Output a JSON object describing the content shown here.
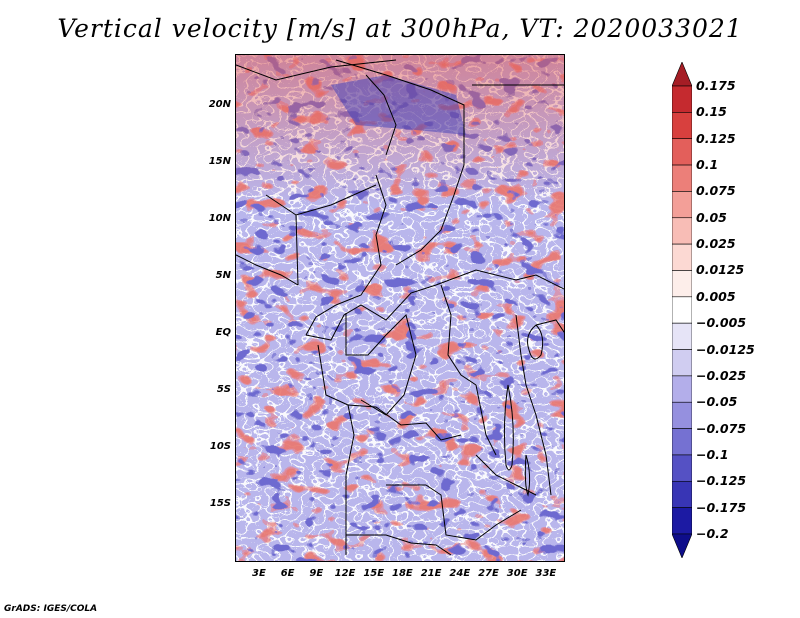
{
  "title": "Vertical velocity [m/s] at 300hPa, VT: 2020033021",
  "map": {
    "lat_ticks": [
      "20N",
      "15N",
      "10N",
      "5N",
      "EQ",
      "5S",
      "10S",
      "15S"
    ],
    "lat_values": [
      20,
      15,
      10,
      5,
      0,
      -5,
      -10,
      -15
    ],
    "lon_ticks": [
      "3E",
      "6E",
      "9E",
      "12E",
      "15E",
      "18E",
      "21E",
      "24E",
      "27E",
      "30E",
      "33E"
    ],
    "lon_values": [
      3,
      6,
      9,
      12,
      15,
      18,
      21,
      24,
      27,
      30,
      33
    ],
    "lat_range": [
      -20,
      24.6
    ],
    "lon_range": [
      0.5,
      35
    ],
    "colors": {
      "border_line": "#000000",
      "base_field": "#b9b6ec"
    }
  },
  "colorbar": {
    "labels": [
      "0.175",
      "0.15",
      "0.125",
      "0.1",
      "0.075",
      "0.05",
      "0.025",
      "0.0125",
      "0.005",
      "−0.005",
      "−0.0125",
      "−0.025",
      "−0.05",
      "−0.075",
      "−0.1",
      "−0.125",
      "−0.175",
      "−0.2"
    ],
    "colors": [
      "#a51d25",
      "#c52a2f",
      "#d8403e",
      "#e35f5b",
      "#ec7f79",
      "#f39f98",
      "#f8bdb6",
      "#fcd9d3",
      "#fdeeea",
      "#ffffff",
      "#e6e4f7",
      "#d0cdf1",
      "#b3aeea",
      "#9590df",
      "#7571d2",
      "#5551c4",
      "#3835b5",
      "#1c1aa3",
      "#0e0d8a"
    ]
  },
  "credit": "GrADS: IGES/COLA"
}
